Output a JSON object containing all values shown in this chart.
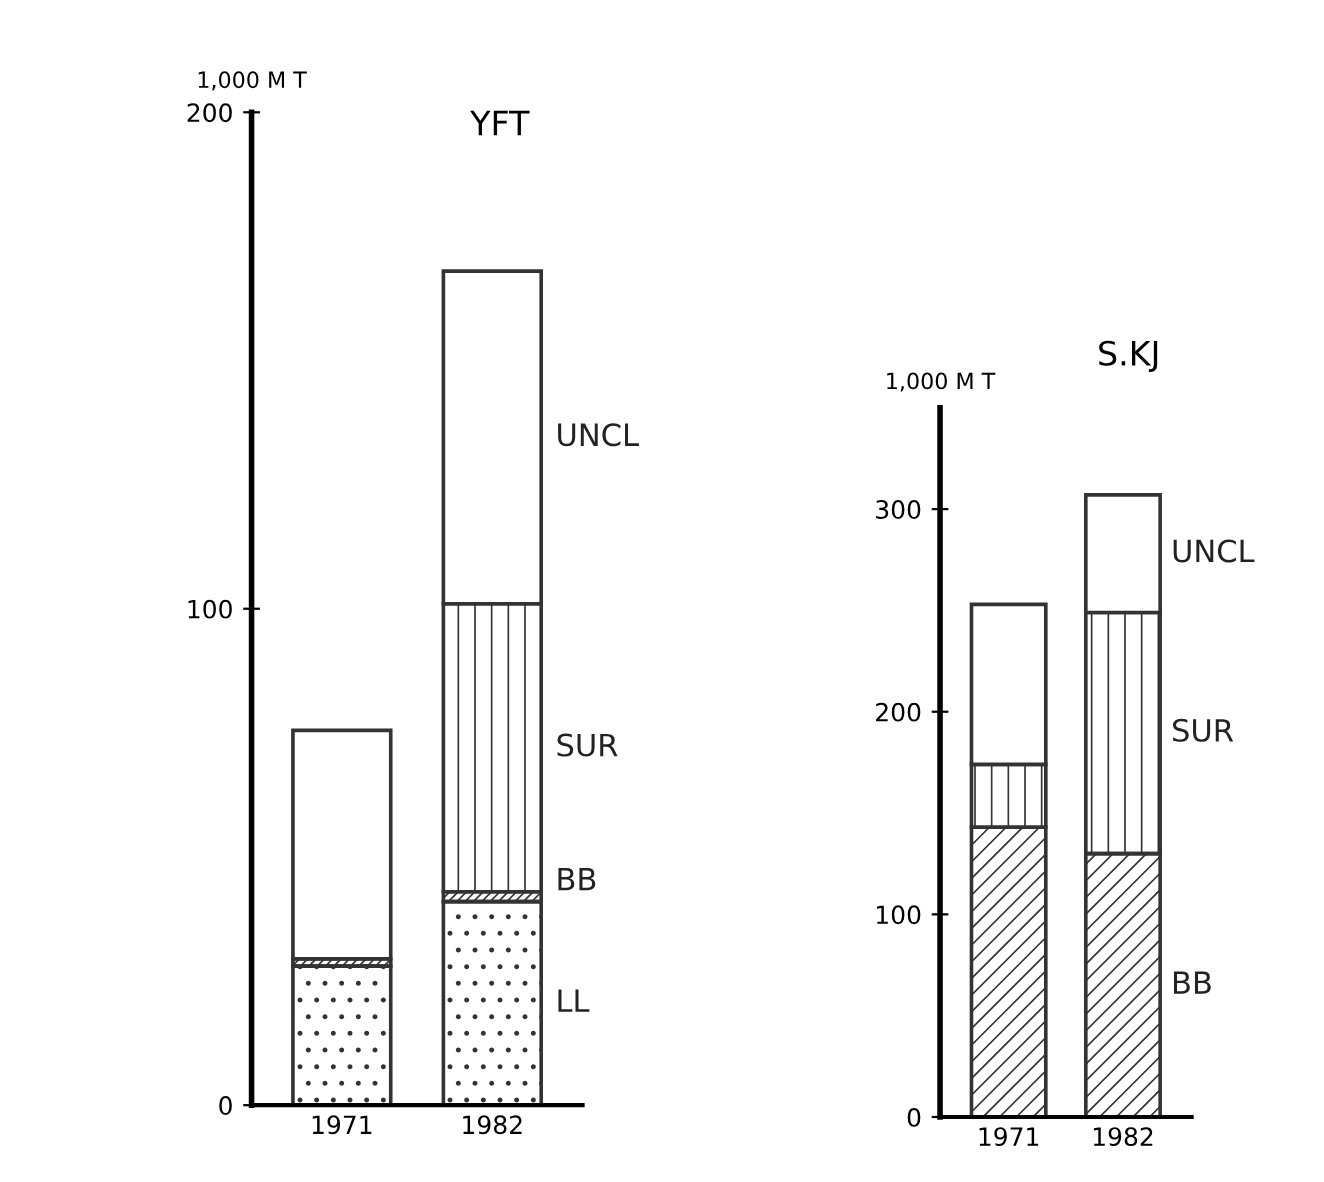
{
  "chart_data": [
    {
      "type": "bar",
      "title": "YFT",
      "ylabel": "1,000 M T",
      "categories": [
        "1971",
        "1982"
      ],
      "stacked": true,
      "legend": false,
      "grid": false,
      "ylim": [
        0,
        200
      ],
      "yticks": [
        0,
        100,
        200
      ],
      "series": [
        {
          "name": "LL",
          "color": "#333333",
          "values": [
            28,
            41
          ]
        },
        {
          "name": "BB",
          "color": "#333333",
          "values": [
            1.5,
            2
          ]
        },
        {
          "name": "SUR",
          "color": "#333333",
          "values": [
            0,
            58
          ]
        },
        {
          "name": "UNCL",
          "color": "#ffffff",
          "values": [
            46,
            67
          ]
        }
      ]
    },
    {
      "type": "bar",
      "title": "S.KJ",
      "ylabel": "1,000 M T",
      "categories": [
        "1971",
        "1982"
      ],
      "stacked": true,
      "legend": false,
      "grid": false,
      "ylim": [
        0,
        350
      ],
      "yticks": [
        0,
        100,
        200,
        300
      ],
      "series": [
        {
          "name": "BB",
          "color": "#333333",
          "values": [
            143,
            130
          ]
        },
        {
          "name": "SUR",
          "color": "#333333",
          "values": [
            31,
            119
          ]
        },
        {
          "name": "UNCL",
          "color": "#ffffff",
          "values": [
            79,
            58
          ]
        }
      ]
    }
  ]
}
